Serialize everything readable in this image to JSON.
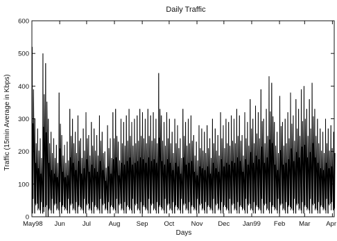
{
  "chart_data": {
    "type": "line",
    "title": "Daily Traffic",
    "xlabel": "Days",
    "ylabel": "Traffic (15min Average in Kbps)",
    "ylim": [
      0,
      600
    ],
    "yticks": [
      0,
      100,
      200,
      300,
      400,
      500,
      600
    ],
    "grid": false,
    "legend": "none",
    "line_color": "#000000",
    "months": [
      {
        "label": "May98",
        "day": 0
      },
      {
        "label": "Jun",
        "day": 31
      },
      {
        "label": "Jul",
        "day": 61
      },
      {
        "label": "Aug",
        "day": 92
      },
      {
        "label": "Sep",
        "day": 123
      },
      {
        "label": "Oct",
        "day": 153
      },
      {
        "label": "Nov",
        "day": 184
      },
      {
        "label": "Dec",
        "day": 214
      },
      {
        "label": "Jan99",
        "day": 245
      },
      {
        "label": "Feb",
        "day": 276
      },
      {
        "label": "Mar",
        "day": 304
      },
      {
        "label": "Apr",
        "day": 335
      }
    ],
    "xlim": [
      0,
      337
    ],
    "x": [
      0,
      3,
      6,
      9,
      12,
      15,
      18,
      21,
      24,
      27,
      30,
      33,
      36,
      39,
      42,
      45,
      48,
      51,
      54,
      57,
      60,
      63,
      66,
      69,
      72,
      75,
      78,
      81,
      84,
      87,
      90,
      93,
      96,
      99,
      102,
      105,
      108,
      111,
      114,
      117,
      120,
      123,
      126,
      129,
      132,
      135,
      138,
      141,
      144,
      147,
      150,
      153,
      156,
      159,
      162,
      165,
      168,
      171,
      174,
      177,
      180,
      183,
      186,
      189,
      192,
      195,
      198,
      201,
      204,
      207,
      210,
      213,
      216,
      219,
      222,
      225,
      228,
      231,
      234,
      237,
      240,
      243,
      246,
      249,
      252,
      255,
      258,
      261,
      264,
      267,
      270,
      273,
      276,
      279,
      282,
      285,
      288,
      291,
      294,
      297,
      300,
      303,
      306,
      309,
      312,
      315,
      318,
      321,
      324,
      327,
      330,
      333,
      336
    ],
    "y_high": [
      520,
      300,
      270,
      240,
      500,
      470,
      300,
      260,
      240,
      220,
      380,
      250,
      220,
      230,
      330,
      300,
      260,
      310,
      240,
      270,
      320,
      250,
      290,
      270,
      250,
      310,
      260,
      200,
      280,
      240,
      320,
      330,
      230,
      300,
      290,
      310,
      330,
      290,
      300,
      310,
      330,
      320,
      300,
      330,
      310,
      320,
      300,
      440,
      310,
      290,
      320,
      300,
      260,
      300,
      280,
      240,
      330,
      290,
      300,
      310,
      250,
      230,
      280,
      270,
      260,
      280,
      240,
      300,
      270,
      250,
      320,
      280,
      300,
      290,
      310,
      300,
      330,
      310,
      250,
      320,
      290,
      360,
      300,
      340,
      320,
      390,
      300,
      330,
      430,
      410,
      290,
      260,
      370,
      290,
      300,
      320,
      380,
      310,
      360,
      330,
      390,
      400,
      330,
      360,
      410,
      330,
      300,
      270,
      260,
      300,
      270,
      280,
      260
    ],
    "y_low": [
      30,
      10,
      40,
      20,
      10,
      30,
      0,
      20,
      10,
      40,
      20,
      10,
      30,
      20,
      10,
      40,
      20,
      10,
      30,
      20,
      10,
      40,
      20,
      10,
      30,
      20,
      10,
      40,
      20,
      10,
      30,
      20,
      10,
      40,
      20,
      10,
      30,
      20,
      10,
      40,
      20,
      10,
      30,
      20,
      10,
      40,
      20,
      10,
      30,
      20,
      10,
      40,
      20,
      10,
      30,
      20,
      10,
      40,
      20,
      10,
      30,
      20,
      10,
      40,
      20,
      10,
      30,
      20,
      10,
      40,
      20,
      10,
      30,
      20,
      10,
      40,
      20,
      10,
      30,
      20,
      10,
      40,
      20,
      10,
      30,
      20,
      10,
      40,
      20,
      10,
      30,
      20,
      10,
      40,
      20,
      10,
      30,
      20,
      10,
      40,
      20,
      10,
      30,
      20,
      10,
      40,
      20,
      10,
      30,
      20,
      10,
      40,
      20
    ]
  }
}
